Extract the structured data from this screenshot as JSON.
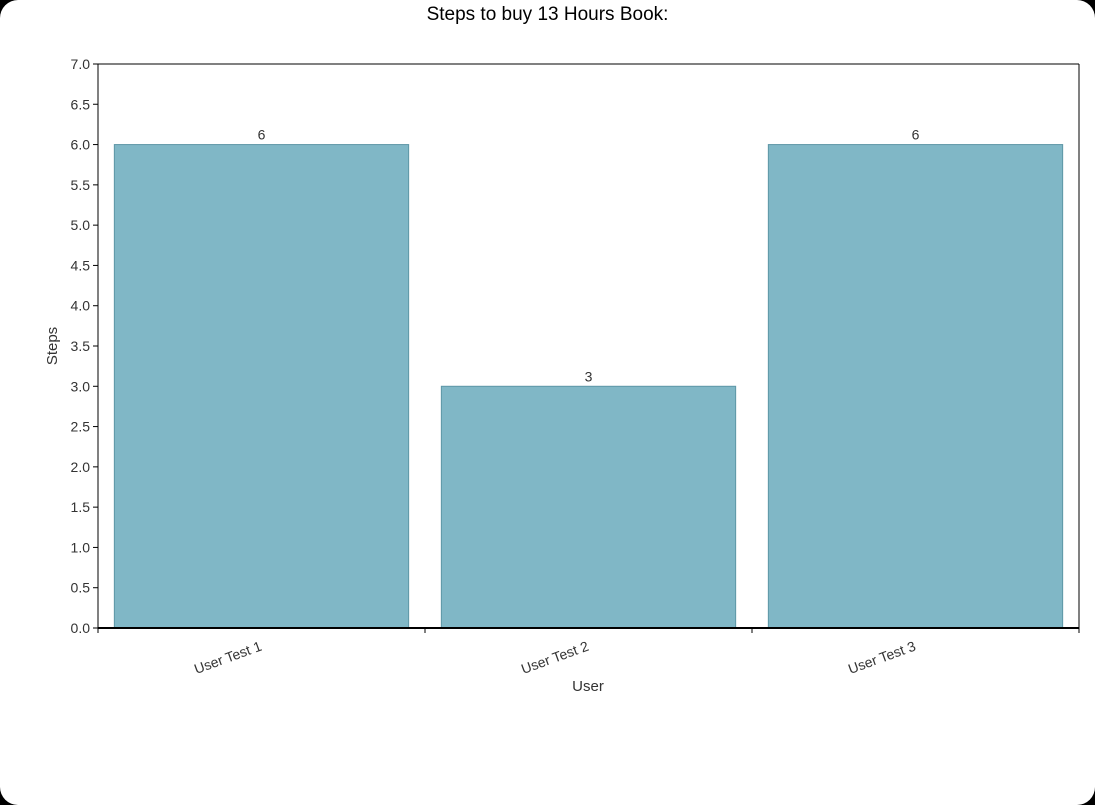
{
  "chart_data": {
    "type": "bar",
    "title": "Steps to buy 13 Hours Book:",
    "xlabel": "User",
    "ylabel": "Steps",
    "categories": [
      "User Test 1",
      "User Test 2",
      "User Test 3"
    ],
    "values": [
      6,
      3,
      6
    ],
    "data_labels": [
      "6",
      "3",
      "6"
    ],
    "ylim": [
      0,
      7
    ],
    "yticks": [
      "0.0",
      "0.5",
      "1.0",
      "1.5",
      "2.0",
      "2.5",
      "3.0",
      "3.5",
      "4.0",
      "4.5",
      "5.0",
      "5.5",
      "6.0",
      "6.5",
      "7.0"
    ],
    "grid": false,
    "legend": "none",
    "colors": {
      "bar_fill": "#80b7c6",
      "bar_stroke": "#5d96a6",
      "axis": "#000000",
      "text": "#333333"
    }
  }
}
